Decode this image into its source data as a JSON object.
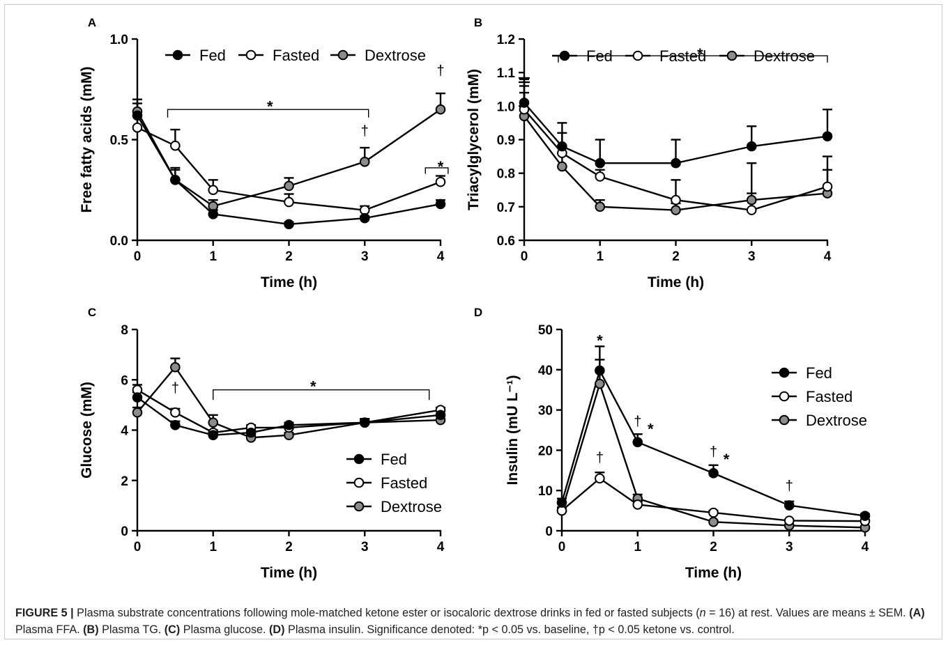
{
  "figure": {
    "caption_label": "FIGURE 5 |",
    "caption_line1": " Plasma substrate concentrations following mole-matched ketone ester or isocaloric dextrose drinks in fed or fasted subjects (",
    "caption_n": "n",
    "caption_line1b": " = 16) at rest. Values are means ± SEM. ",
    "caption_a": "(A)",
    "caption_a_text": " Plasma FFA. ",
    "caption_b": "(B)",
    "caption_b_text": " Plasma TG. ",
    "caption_c": "(C)",
    "caption_c_text": " Plasma glucose. ",
    "caption_d": "(D)",
    "caption_d_text": " Plasma insulin. Significance denoted: ",
    "caption_sig1": "*p < 0.05 vs. baseline, ",
    "caption_sig2": "†p < 0.05 ketone vs. control."
  },
  "colors": {
    "fed": "#000000",
    "fasted": "#ffffff",
    "dextrose": "#8c8c8c",
    "stroke": "#000000"
  },
  "chart_data": [
    {
      "panel": "A",
      "type": "line",
      "xlabel": "Time (h)",
      "ylabel": "Free fatty acids (mM)",
      "xlim": [
        0,
        4
      ],
      "ylim": [
        0,
        1.0
      ],
      "xticks": [
        0,
        1,
        2,
        3,
        4
      ],
      "xtick_labels": [
        "0",
        "1",
        "2",
        "3",
        "4"
      ],
      "yticks": [
        0,
        0.5,
        1.0
      ],
      "ytick_labels": [
        "0.0",
        "0.5",
        "1.0"
      ],
      "legend_position": "top",
      "legend_layout": "row",
      "series": [
        {
          "name": "Fed",
          "color": "#000000",
          "x": [
            0,
            0.5,
            1,
            2,
            3,
            4
          ],
          "y": [
            0.62,
            0.3,
            0.13,
            0.08,
            0.11,
            0.18
          ],
          "err": [
            0.06,
            0.06,
            0.02,
            0.01,
            0.01,
            0.02
          ]
        },
        {
          "name": "Fasted",
          "color": "#ffffff",
          "x": [
            0,
            0.5,
            1,
            2,
            3,
            4
          ],
          "y": [
            0.56,
            0.47,
            0.25,
            0.19,
            0.15,
            0.29
          ],
          "err": [
            0.06,
            0.08,
            0.05,
            0.04,
            0.02,
            0.03
          ]
        },
        {
          "name": "Dextrose",
          "color": "#8c8c8c",
          "x": [
            0,
            0.5,
            1,
            2,
            3,
            4
          ],
          "y": [
            0.64,
            0.3,
            0.17,
            0.27,
            0.39,
            0.65
          ],
          "err": [
            0.06,
            0.05,
            0.03,
            0.04,
            0.07,
            0.08
          ]
        }
      ],
      "annotations": [
        {
          "text": "*",
          "x": 1.75,
          "y": 0.68
        },
        {
          "text": "†",
          "x": 3.0,
          "y": 0.52
        },
        {
          "text": "*",
          "x": 4.0,
          "y": 0.38
        },
        {
          "text": "†",
          "x": 4.0,
          "y": 0.82
        }
      ],
      "brackets": [
        {
          "x1": 0.4,
          "x2": 3.05,
          "y": 0.65,
          "drop": 0.04
        },
        {
          "x1": 3.8,
          "x2": 4.1,
          "y": 0.36,
          "drop": 0.03
        }
      ]
    },
    {
      "panel": "B",
      "type": "line",
      "xlabel": "Time (h)",
      "ylabel": "Triacylglycerol (mM)",
      "xlim": [
        0,
        4
      ],
      "ylim": [
        0.6,
        1.2
      ],
      "xticks": [
        0,
        1,
        2,
        3,
        4
      ],
      "xtick_labels": [
        "0",
        "1",
        "2",
        "3",
        "4"
      ],
      "yticks": [
        0.6,
        0.7,
        0.8,
        0.9,
        1.0,
        1.1,
        1.2
      ],
      "ytick_labels": [
        "0.6",
        "0.7",
        "0.8",
        "0.9",
        "1.0",
        "1.1",
        "1.2"
      ],
      "legend_position": "top",
      "legend_layout": "row",
      "series": [
        {
          "name": "Fed",
          "color": "#000000",
          "x": [
            0,
            0.5,
            1,
            2,
            3,
            4
          ],
          "y": [
            1.01,
            0.88,
            0.83,
            0.83,
            0.88,
            0.91
          ],
          "err": [
            0.07,
            0.07,
            0.07,
            0.07,
            0.06,
            0.08
          ]
        },
        {
          "name": "Fasted",
          "color": "#ffffff",
          "x": [
            0,
            0.5,
            1,
            2,
            3,
            4
          ],
          "y": [
            0.99,
            0.86,
            0.79,
            0.72,
            0.69,
            0.76
          ],
          "err": [
            0.07,
            0.06,
            0.02,
            0.06,
            0.05,
            0.09
          ]
        },
        {
          "name": "Dextrose",
          "color": "#8c8c8c",
          "x": [
            0,
            0.5,
            1,
            2,
            3,
            4
          ],
          "y": [
            0.97,
            0.82,
            0.7,
            0.69,
            0.72,
            0.74
          ],
          "err": [
            0.07,
            0.06,
            0.02,
            0.02,
            0.11,
            0.07
          ]
        }
      ],
      "annotations": [
        {
          "text": "*",
          "x": 2.32,
          "y": 1.165
        }
      ],
      "brackets": [
        {
          "x1": 0.45,
          "x2": 4.0,
          "y": 1.15,
          "drop": 0.02
        }
      ]
    },
    {
      "panel": "C",
      "type": "line",
      "xlabel": "Time (h)",
      "ylabel": "Glucose (mM)",
      "xlim": [
        0,
        4
      ],
      "ylim": [
        0,
        8
      ],
      "xticks": [
        0,
        1,
        2,
        3,
        4
      ],
      "xtick_labels": [
        "0",
        "1",
        "2",
        "3",
        "4"
      ],
      "yticks": [
        0,
        2,
        4,
        6,
        8
      ],
      "ytick_labels": [
        "0",
        "2",
        "4",
        "6",
        "8"
      ],
      "legend_position": "bottom-right",
      "legend_layout": "column",
      "series": [
        {
          "name": "Fed",
          "color": "#000000",
          "x": [
            0,
            0.5,
            1,
            1.5,
            2,
            3,
            4
          ],
          "y": [
            5.3,
            4.2,
            3.8,
            3.9,
            4.2,
            4.3,
            4.6
          ],
          "err": [
            0.2,
            0.15,
            0.1,
            0.1,
            0.1,
            0.15,
            0.15
          ]
        },
        {
          "name": "Fasted",
          "color": "#ffffff",
          "x": [
            0,
            0.5,
            1,
            1.5,
            2,
            3,
            4
          ],
          "y": [
            5.6,
            4.7,
            3.9,
            4.1,
            4.1,
            4.3,
            4.8
          ],
          "err": [
            0.2,
            0.15,
            0.1,
            0.1,
            0.1,
            0.1,
            0.1
          ]
        },
        {
          "name": "Dextrose",
          "color": "#8c8c8c",
          "x": [
            0,
            0.5,
            1,
            1.5,
            2,
            3,
            4
          ],
          "y": [
            4.7,
            6.5,
            4.3,
            3.7,
            3.8,
            4.3,
            4.4
          ],
          "err": [
            0.2,
            0.35,
            0.3,
            0.1,
            0.1,
            0.15,
            0.15
          ]
        }
      ],
      "annotations": [
        {
          "text": "*",
          "x": 2.32,
          "y": 5.85
        },
        {
          "text": "†",
          "x": 0.5,
          "y": 5.5
        }
      ],
      "brackets": [
        {
          "x1": 1.0,
          "x2": 3.85,
          "y": 5.6,
          "drop": 0.4
        }
      ]
    },
    {
      "panel": "D",
      "type": "line",
      "xlabel": "Time (h)",
      "ylabel": "Insulin (mU L⁻¹)",
      "xlim": [
        0,
        4
      ],
      "ylim": [
        0,
        50
      ],
      "xticks": [
        0,
        1,
        2,
        3,
        4
      ],
      "xtick_labels": [
        "0",
        "1",
        "2",
        "3",
        "4"
      ],
      "yticks": [
        0,
        10,
        20,
        30,
        40,
        50
      ],
      "ytick_labels": [
        "0",
        "10",
        "20",
        "30",
        "40",
        "50"
      ],
      "legend_position": "right",
      "legend_layout": "column",
      "series": [
        {
          "name": "Fed",
          "color": "#000000",
          "x": [
            0,
            0.5,
            1,
            2,
            3,
            4
          ],
          "y": [
            7,
            39.8,
            22,
            14.3,
            6.3,
            3.7
          ],
          "err": [
            1,
            6,
            2,
            2,
            1,
            0.5
          ]
        },
        {
          "name": "Fasted",
          "color": "#ffffff",
          "x": [
            0,
            0.5,
            1,
            2,
            3,
            4
          ],
          "y": [
            5,
            13,
            6.5,
            4.5,
            2.5,
            2.4
          ],
          "err": [
            0.8,
            1.5,
            0.8,
            0.5,
            0.3,
            0.3
          ]
        },
        {
          "name": "Dextrose",
          "color": "#8c8c8c",
          "x": [
            0,
            0.5,
            1,
            2,
            3,
            4
          ],
          "y": [
            5,
            36.5,
            8,
            2.2,
            1.3,
            0.8
          ],
          "err": [
            0.8,
            6,
            1,
            0.3,
            0.2,
            0.2
          ]
        }
      ],
      "annotations": [
        {
          "text": "*",
          "x": 0.5,
          "y": 48
        },
        {
          "text": "†",
          "x": 1.0,
          "y": 26
        },
        {
          "text": "*",
          "x": 1.17,
          "y": 26
        },
        {
          "text": "†",
          "x": 2.0,
          "y": 18.5
        },
        {
          "text": "*",
          "x": 2.17,
          "y": 18.5
        },
        {
          "text": "†",
          "x": 3.0,
          "y": 10
        },
        {
          "text": "†",
          "x": 0.5,
          "y": 17
        }
      ],
      "brackets": []
    }
  ]
}
